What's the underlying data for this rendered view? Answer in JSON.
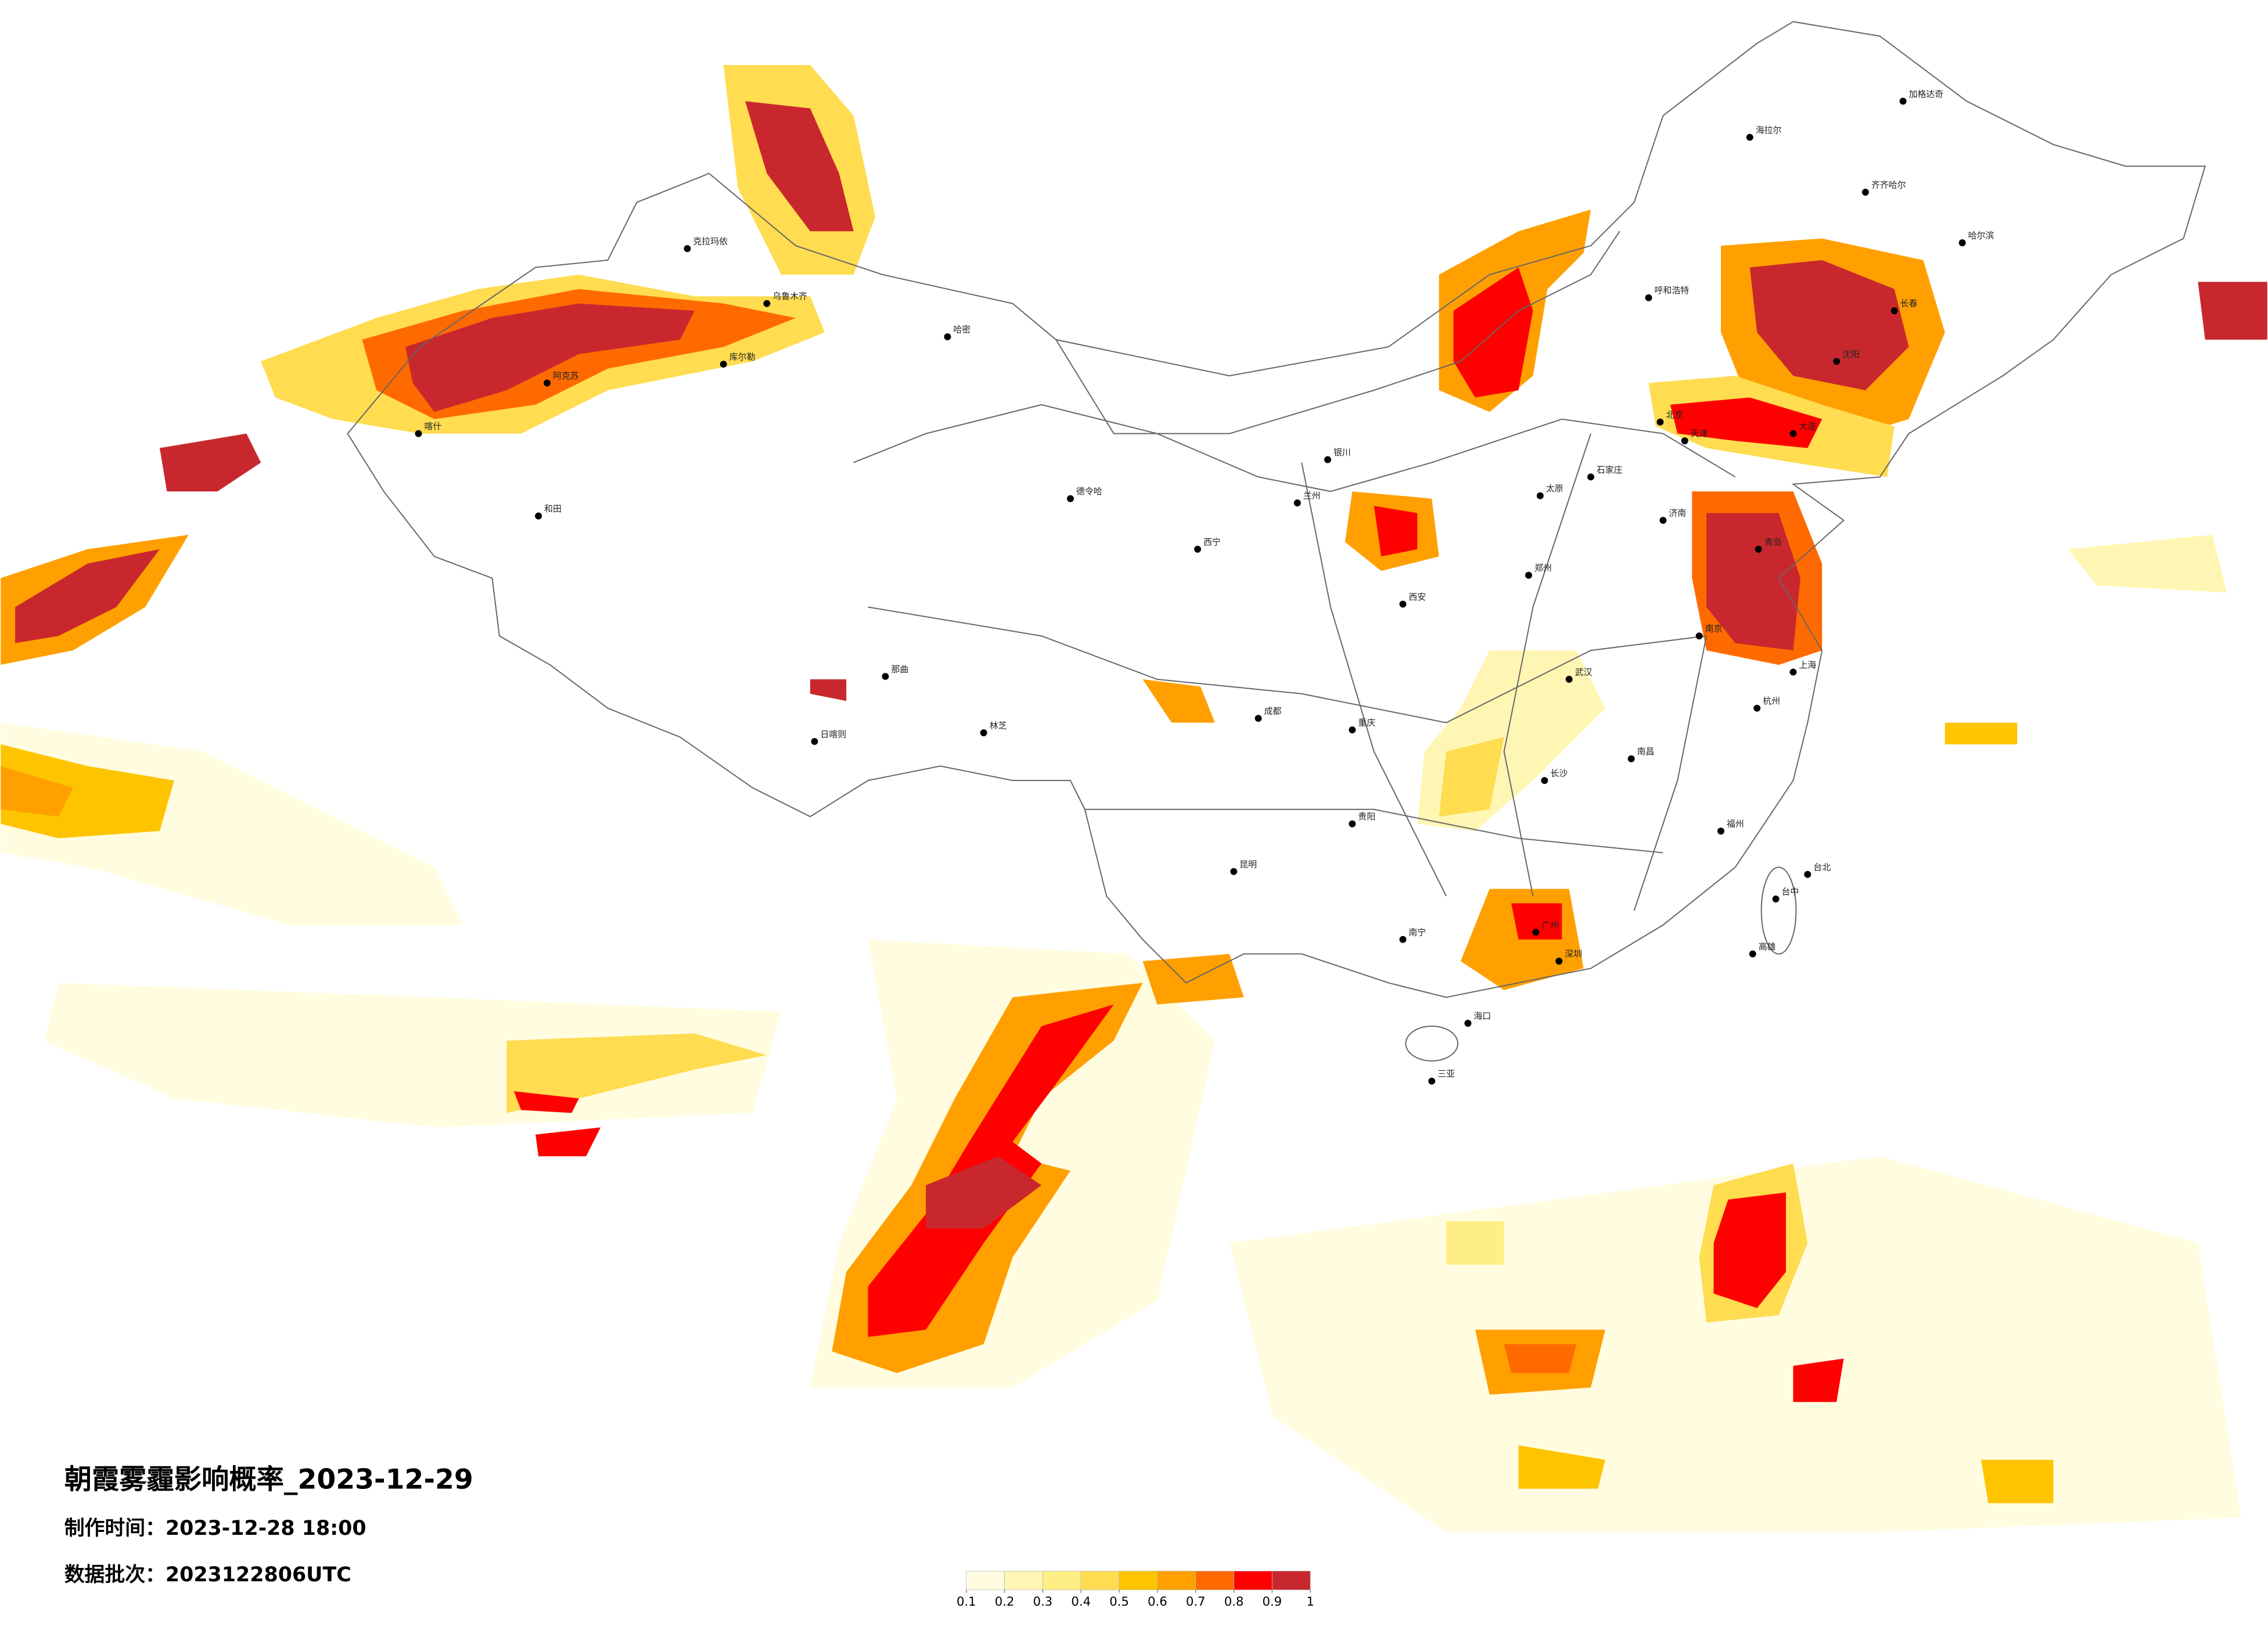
{
  "header": {
    "title": "朝霞雾霾影响概率_2023-12-29",
    "made_time": "制作时间：2023-12-28 18:00",
    "batch": "数据批次：2023122806UTC"
  },
  "legend": {
    "colors": [
      "#fffce0",
      "#fff6b4",
      "#ffee84",
      "#ffdc50",
      "#ffc400",
      "#ffa000",
      "#ff6a00",
      "#ff0000",
      "#c8282d"
    ],
    "ticks": [
      0.1,
      0.2,
      0.3,
      0.4,
      0.5,
      0.6,
      0.7,
      0.8,
      0.9,
      1
    ]
  },
  "cities": [
    "喀什",
    "和田",
    "阿克苏",
    "哈密",
    "库尔勒",
    "克拉玛依",
    "乌鲁木齐",
    "德令哈",
    "西宁",
    "兰州",
    "银川",
    "日喀则",
    "那曲",
    "林芝",
    "呼和浩特",
    "北京",
    "天津",
    "石家庄",
    "太原",
    "济南",
    "青岛",
    "郑州",
    "西安",
    "武汉",
    "南京",
    "上海",
    "杭州",
    "长沙",
    "南昌",
    "福州",
    "广州",
    "深圳",
    "南宁",
    "海口",
    "三亚",
    "昆明",
    "贵阳",
    "重庆",
    "成都",
    "哈尔滨",
    "长春",
    "沈阳",
    "大连",
    "齐齐哈尔",
    "海拉尔",
    "加格达奇",
    "台北",
    "台中",
    "高雄"
  ]
}
